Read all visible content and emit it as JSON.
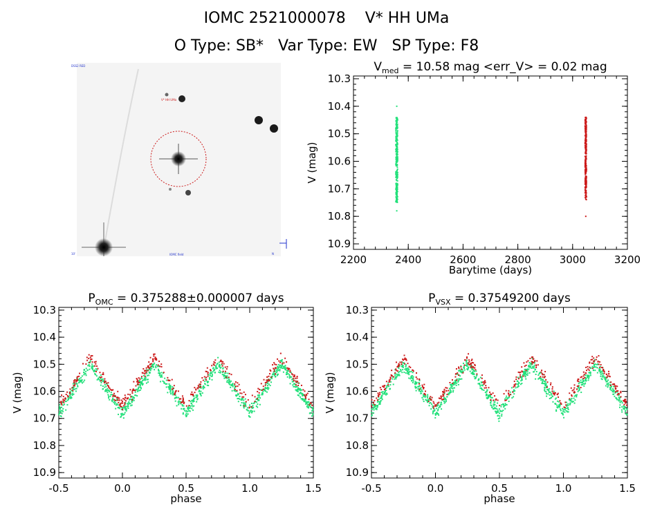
{
  "header": {
    "line1": "IOMC 2521000078    V* HH UMa",
    "line2": "O Type: SB*   Var Type: EW   SP Type: F8"
  },
  "finder": {
    "label_tl": "DSS2 RED",
    "label_target": "V* HH UMa",
    "label_bl": "10'",
    "label_bc": "IOMC field",
    "label_br": "N"
  },
  "colors": {
    "green": "#22e07a",
    "red": "#cc1a1a"
  },
  "chart_data": [
    {
      "type": "scatter",
      "id": "lightcurve",
      "title_main": "V",
      "title_sub": "med",
      "title_rest": " = 10.58 mag <err_V> = 0.02 mag",
      "xlabel": "Barytime (days)",
      "ylabel": "V (mag)",
      "xlim": [
        2200,
        3200
      ],
      "ylim": [
        10.92,
        10.29
      ],
      "xticks": [
        "2200",
        "2400",
        "2600",
        "2800",
        "3000",
        "3200"
      ],
      "yticks": [
        "10.3",
        "10.4",
        "10.5",
        "10.6",
        "10.7",
        "10.8",
        "10.9"
      ],
      "series": [
        {
          "name": "green",
          "x_center": 2358,
          "x_spread": 7,
          "y_min": 10.44,
          "y_max": 10.75,
          "outliers": [
            10.4,
            10.78
          ]
        },
        {
          "name": "red",
          "x_center": 3048,
          "x_spread": 5,
          "y_min": 10.44,
          "y_max": 10.74,
          "outliers": [
            10.8
          ]
        }
      ]
    },
    {
      "type": "scatter",
      "id": "phase_omc",
      "title_main": "P",
      "title_sub": "OMC",
      "title_rest": " = 0.375288±0.000007 days",
      "xlabel": "phase",
      "ylabel": "V (mag)",
      "xlim": [
        -0.5,
        1.5
      ],
      "ylim": [
        10.92,
        10.29
      ],
      "xticks": [
        "-0.5",
        "0.0",
        "0.5",
        "1.0",
        "1.5"
      ],
      "yticks": [
        "10.3",
        "10.4",
        "10.5",
        "10.6",
        "10.7",
        "10.8",
        "10.9"
      ],
      "model": {
        "max_mag": 10.5,
        "min_mag": 10.68,
        "min_phases": [
          0.0,
          0.5
        ],
        "scatter": 0.04
      }
    },
    {
      "type": "scatter",
      "id": "phase_vsx",
      "title_main": "P",
      "title_sub": "VSX",
      "title_rest": " = 0.37549200 days",
      "xlabel": "phase",
      "ylabel": "V (mag)",
      "xlim": [
        -0.5,
        1.5
      ],
      "ylim": [
        10.92,
        10.29
      ],
      "xticks": [
        "-0.5",
        "0.0",
        "0.5",
        "1.0",
        "1.5"
      ],
      "yticks": [
        "10.3",
        "10.4",
        "10.5",
        "10.6",
        "10.7",
        "10.8",
        "10.9"
      ],
      "model": {
        "max_mag": 10.5,
        "min_mag": 10.68,
        "min_phases": [
          0.0,
          0.5
        ],
        "scatter": 0.04
      }
    }
  ]
}
